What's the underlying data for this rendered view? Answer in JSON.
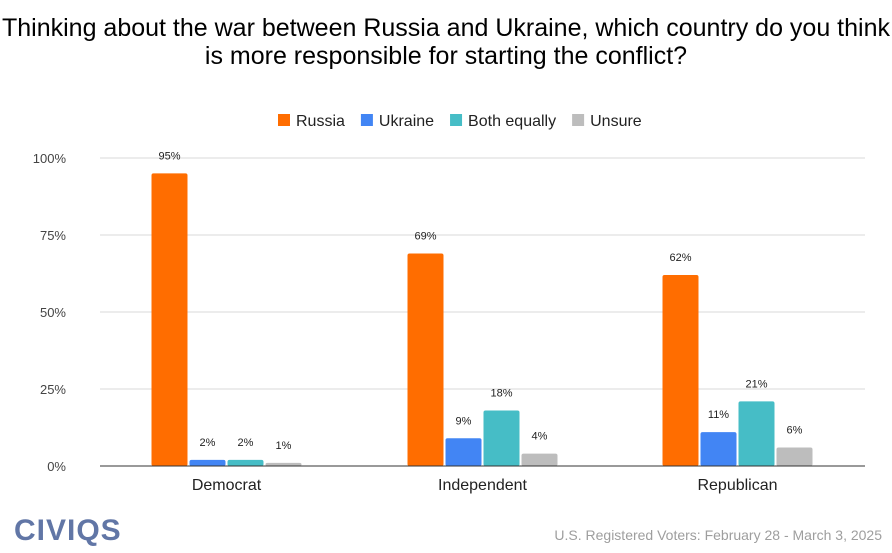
{
  "chart_data": {
    "type": "bar",
    "title": "Thinking about the war between Russia and Ukraine, which country do you think is more responsible for starting the conflict?",
    "categories": [
      "Democrat",
      "Independent",
      "Republican"
    ],
    "series": [
      {
        "name": "Russia",
        "color": "#FF6D00",
        "values": [
          95,
          69,
          62
        ]
      },
      {
        "name": "Ukraine",
        "color": "#4285F4",
        "values": [
          2,
          9,
          11
        ]
      },
      {
        "name": "Both equally",
        "color": "#46BDC6",
        "values": [
          2,
          18,
          21
        ]
      },
      {
        "name": "Unsure",
        "color": "#BDBDBD",
        "values": [
          1,
          4,
          6
        ]
      }
    ],
    "ylim": [
      0,
      100
    ],
    "yticks": [
      "0%",
      "25%",
      "50%",
      "75%",
      "100%"
    ],
    "grid": true,
    "legend": "top-center",
    "data_labels": true
  },
  "logo": "CIVIQS",
  "source": "U.S. Registered Voters: February 28 - March 3, 2025"
}
